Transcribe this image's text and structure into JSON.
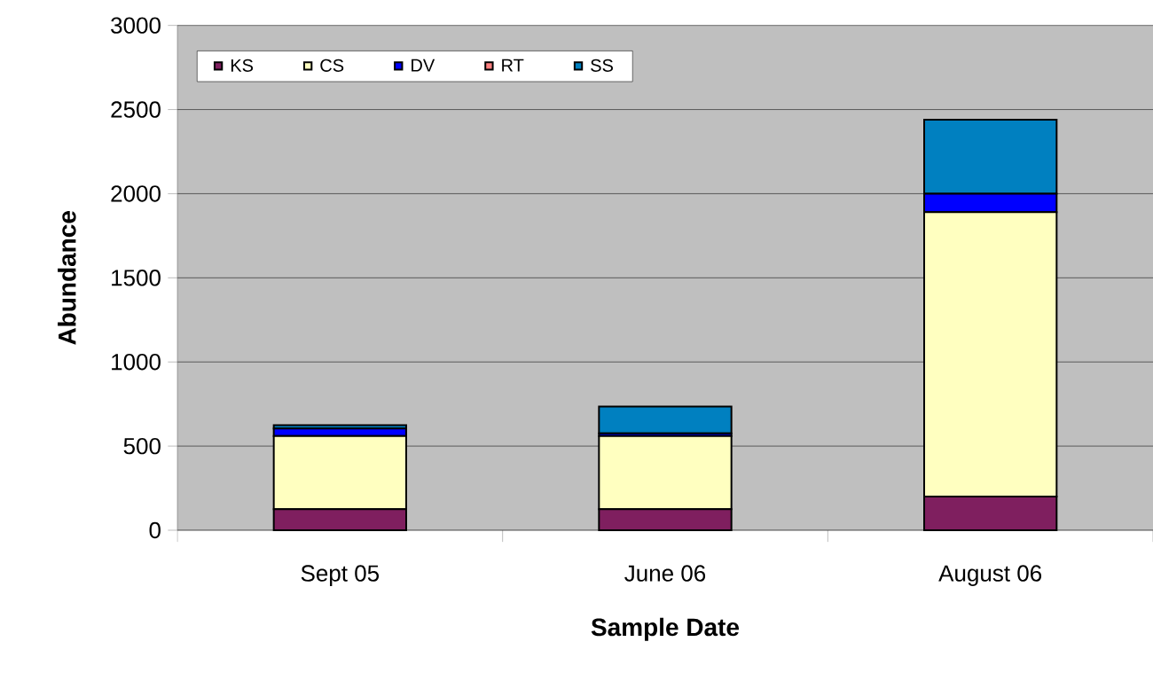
{
  "chart_data": {
    "type": "bar",
    "stacked": true,
    "xlabel": "Sample Date",
    "ylabel": "Abundance",
    "categories": [
      "Sept 05",
      "June 06",
      "August 06"
    ],
    "series": [
      {
        "name": "KS",
        "color": "#7f1f5f",
        "values": [
          125,
          125,
          200
        ]
      },
      {
        "name": "CS",
        "color": "#ffffc0",
        "values": [
          435,
          435,
          1690
        ]
      },
      {
        "name": "DV",
        "color": "#0000ff",
        "values": [
          45,
          15,
          110
        ]
      },
      {
        "name": "RT",
        "color": "#ff8080",
        "values": [
          0,
          0,
          0
        ]
      },
      {
        "name": "SS",
        "color": "#0080c0",
        "values": [
          20,
          160,
          440
        ]
      }
    ],
    "ylim": [
      0,
      3000
    ],
    "yticks": [
      0,
      500,
      1000,
      1500,
      2000,
      2500,
      3000
    ],
    "grid": "y",
    "legend": "top left"
  }
}
